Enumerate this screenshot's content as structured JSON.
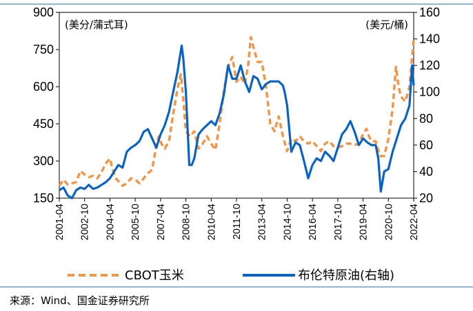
{
  "chart_data": {
    "type": "line",
    "title": "",
    "xlabel": "",
    "y_left_unit": "(美分/蒲式耳)",
    "y_right_unit": "(美元/桶)",
    "y_left_lim": [
      150,
      900
    ],
    "y_right_lim": [
      20,
      160
    ],
    "y_left_ticks": [
      "150",
      "300",
      "450",
      "600",
      "750",
      "900"
    ],
    "y_right_ticks": [
      "20",
      "40",
      "60",
      "80",
      "100",
      "120",
      "140",
      "160"
    ],
    "x_lim": [
      2001.25,
      2022.25
    ],
    "x_tick_labels": [
      "2001-04",
      "2002-10",
      "2004-04",
      "2005-10",
      "2007-04",
      "2008-10",
      "2010-04",
      "2011-10",
      "2013-04",
      "2014-10",
      "2016-04",
      "2017-10",
      "2019-04",
      "2020-10",
      "2022-04"
    ],
    "x_tick_positions": [
      2001.25,
      2002.75,
      2004.25,
      2005.75,
      2007.25,
      2008.75,
      2010.25,
      2011.75,
      2013.25,
      2014.75,
      2016.25,
      2017.75,
      2019.25,
      2020.75,
      2022.25
    ],
    "series": [
      {
        "name": "CBOT玉米",
        "axis": "left",
        "color": "#F0964A",
        "style": "dashed",
        "x": [
          2001.25,
          2001.5,
          2001.75,
          2002.0,
          2002.25,
          2002.5,
          2002.75,
          2003.0,
          2003.25,
          2003.5,
          2003.75,
          2004.0,
          2004.25,
          2004.4,
          2004.6,
          2004.8,
          2005.0,
          2005.25,
          2005.5,
          2005.75,
          2006.0,
          2006.25,
          2006.5,
          2006.75,
          2007.0,
          2007.15,
          2007.3,
          2007.5,
          2007.75,
          2008.0,
          2008.25,
          2008.45,
          2008.6,
          2008.75,
          2009.0,
          2009.25,
          2009.5,
          2009.75,
          2010.0,
          2010.25,
          2010.5,
          2010.75,
          2011.0,
          2011.25,
          2011.5,
          2011.75,
          2012.0,
          2012.25,
          2012.45,
          2012.6,
          2012.75,
          2013.0,
          2013.25,
          2013.5,
          2013.75,
          2014.0,
          2014.25,
          2014.5,
          2014.75,
          2015.0,
          2015.25,
          2015.5,
          2015.75,
          2016.0,
          2016.25,
          2016.5,
          2016.75,
          2017.0,
          2017.25,
          2017.5,
          2017.75,
          2018.0,
          2018.25,
          2018.5,
          2018.75,
          2019.0,
          2019.25,
          2019.45,
          2019.6,
          2019.75,
          2020.0,
          2020.25,
          2020.5,
          2020.75,
          2021.0,
          2021.2,
          2021.35,
          2021.5,
          2021.75,
          2022.0,
          2022.15,
          2022.25
        ],
        "values": [
          200,
          225,
          205,
          210,
          215,
          260,
          245,
          235,
          240,
          230,
          255,
          290,
          310,
          270,
          230,
          215,
          200,
          210,
          230,
          225,
          210,
          230,
          250,
          265,
          360,
          400,
          370,
          350,
          380,
          490,
          590,
          650,
          550,
          420,
          400,
          420,
          350,
          370,
          400,
          370,
          345,
          450,
          580,
          680,
          720,
          620,
          640,
          610,
          690,
          800,
          760,
          700,
          700,
          600,
          450,
          420,
          480,
          400,
          340,
          390,
          380,
          400,
          380,
          370,
          380,
          360,
          340,
          370,
          380,
          360,
          355,
          360,
          370,
          370,
          365,
          370,
          410,
          430,
          400,
          380,
          380,
          320,
          320,
          390,
          510,
          680,
          600,
          560,
          540,
          600,
          720,
          790
        ]
      },
      {
        "name": "布伦特原油(右轴)",
        "axis": "right",
        "color": "#0A62C2",
        "style": "solid",
        "x": [
          2001.25,
          2001.5,
          2001.75,
          2002.0,
          2002.25,
          2002.5,
          2002.75,
          2003.0,
          2003.25,
          2003.5,
          2003.75,
          2004.0,
          2004.25,
          2004.5,
          2004.75,
          2005.0,
          2005.25,
          2005.5,
          2005.75,
          2006.0,
          2006.25,
          2006.5,
          2006.75,
          2007.0,
          2007.25,
          2007.5,
          2007.75,
          2008.0,
          2008.25,
          2008.5,
          2008.6,
          2008.75,
          2008.95,
          2009.1,
          2009.25,
          2009.5,
          2009.75,
          2010.0,
          2010.25,
          2010.5,
          2010.75,
          2011.0,
          2011.25,
          2011.5,
          2011.75,
          2012.0,
          2012.25,
          2012.5,
          2012.75,
          2013.0,
          2013.25,
          2013.5,
          2013.75,
          2014.0,
          2014.25,
          2014.5,
          2014.6,
          2014.75,
          2015.0,
          2015.25,
          2015.5,
          2015.75,
          2016.0,
          2016.25,
          2016.5,
          2016.75,
          2017.0,
          2017.25,
          2017.5,
          2017.75,
          2018.0,
          2018.25,
          2018.5,
          2018.75,
          2019.0,
          2019.25,
          2019.5,
          2019.75,
          2020.0,
          2020.15,
          2020.3,
          2020.5,
          2020.75,
          2021.0,
          2021.25,
          2021.5,
          2021.75,
          2022.0,
          2022.15,
          2022.25
        ],
        "values": [
          26,
          28,
          22,
          20,
          26,
          28,
          27,
          30,
          27,
          28,
          30,
          32,
          35,
          40,
          45,
          43,
          55,
          58,
          60,
          63,
          70,
          72,
          65,
          58,
          68,
          75,
          85,
          100,
          115,
          135,
          125,
          100,
          45,
          45,
          50,
          68,
          72,
          75,
          78,
          75,
          84,
          98,
          120,
          110,
          110,
          120,
          108,
          100,
          112,
          110,
          102,
          106,
          108,
          108,
          108,
          105,
          100,
          90,
          55,
          62,
          60,
          48,
          35,
          45,
          50,
          48,
          55,
          52,
          48,
          58,
          68,
          72,
          78,
          70,
          60,
          65,
          62,
          60,
          60,
          50,
          25,
          40,
          42,
          55,
          65,
          75,
          80,
          90,
          120,
          105
        ]
      }
    ]
  },
  "legend": {
    "corn_label": "CBOT玉米",
    "brent_label": "布伦特原油(右轴)"
  },
  "source": "来源：Wind、国金证券研究所"
}
